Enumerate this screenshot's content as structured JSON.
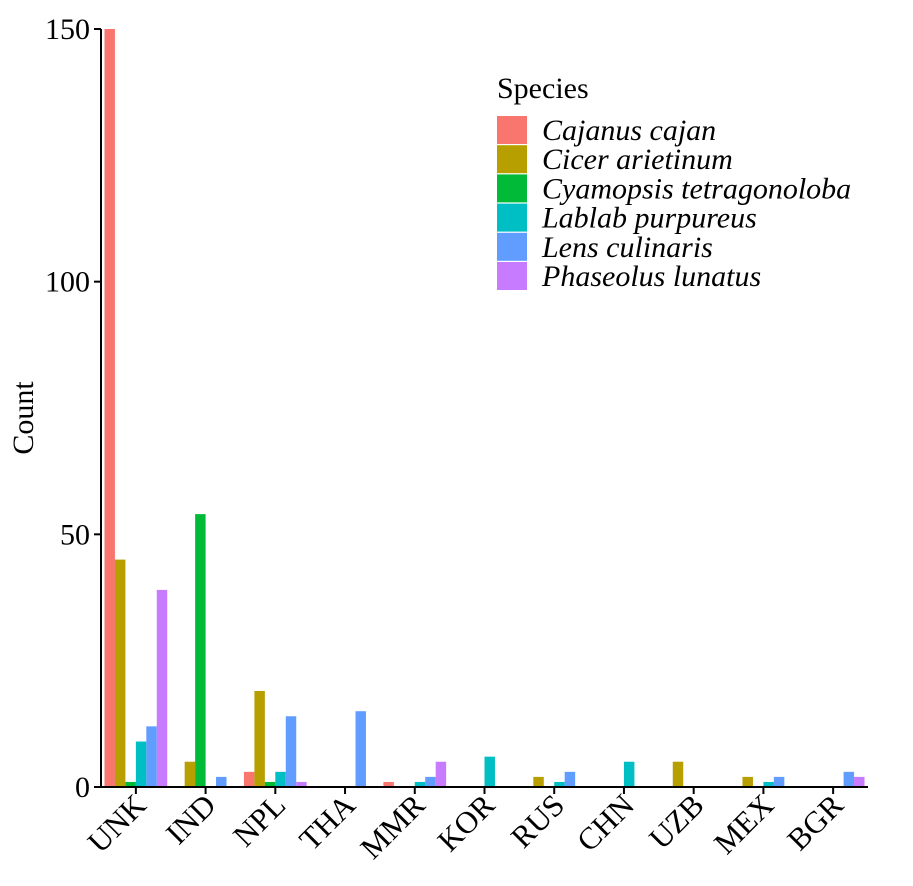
{
  "chart_data": {
    "type": "bar",
    "title": "",
    "xlabel": "",
    "ylabel": "Count",
    "ylim": [
      0,
      150
    ],
    "yticks": [
      0,
      50,
      100,
      150
    ],
    "grid": false,
    "legend": {
      "title": "Species",
      "placement": "top-right"
    },
    "categories": [
      "UNK",
      "IND",
      "NPL",
      "THA",
      "MMR",
      "KOR",
      "RUS",
      "CHN",
      "UZB",
      "MEX",
      "BGR"
    ],
    "series": [
      {
        "name": "Cajanus cajan",
        "color": "#F8766D",
        "values": [
          150,
          0,
          3,
          0,
          1,
          0,
          0,
          0,
          0,
          0,
          0
        ]
      },
      {
        "name": "Cicer arietinum",
        "color": "#B79F00",
        "values": [
          45,
          5,
          19,
          0,
          0,
          0,
          2,
          0,
          5,
          2,
          0
        ]
      },
      {
        "name": "Cyamopsis tetragonoloba",
        "color": "#00BA38",
        "values": [
          1,
          54,
          1,
          0,
          0,
          0,
          0,
          0,
          0,
          0,
          0
        ]
      },
      {
        "name": "Lablab purpureus",
        "color": "#00BFC4",
        "values": [
          9,
          0,
          3,
          0,
          1,
          6,
          1,
          5,
          0,
          1,
          0
        ]
      },
      {
        "name": "Lens culinaris",
        "color": "#619CFF",
        "values": [
          12,
          2,
          14,
          15,
          2,
          0,
          3,
          0,
          0,
          2,
          3
        ]
      },
      {
        "name": "Phaseolus lunatus",
        "color": "#C77CFF",
        "values": [
          39,
          0,
          1,
          0,
          5,
          0,
          0,
          0,
          0,
          0,
          2
        ]
      }
    ]
  }
}
